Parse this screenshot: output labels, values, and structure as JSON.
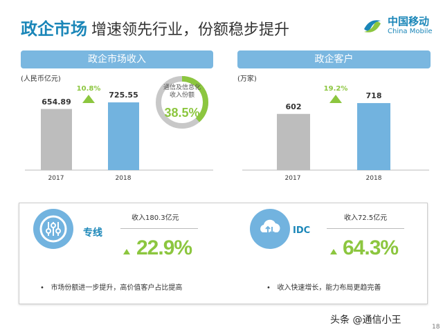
{
  "title": {
    "bold": "政企市场",
    "rest": "增速领先行业，份额稳步提升"
  },
  "logo": {
    "cn": "中国移动",
    "en": "China Mobile"
  },
  "chart_data": [
    {
      "type": "bar",
      "title": "政企市场收入",
      "ylabel": "(人民币亿元)",
      "categories": [
        "2017",
        "2018"
      ],
      "values": [
        654.89,
        725.55
      ],
      "value_labels": [
        "654.89",
        "725.55"
      ],
      "growth": "10.8%",
      "ylim": [
        0,
        800
      ],
      "colors": [
        "#bdbdbd",
        "#72b3df"
      ],
      "donut": {
        "text": "通信及信息化收入份额",
        "value": "38.5%",
        "fraction": 0.385,
        "colors": [
          "#8cc63f",
          "#c8c8c8"
        ]
      }
    },
    {
      "type": "bar",
      "title": "政企客户",
      "ylabel": "(万家)",
      "categories": [
        "2017",
        "2018"
      ],
      "values": [
        602,
        718
      ],
      "value_labels": [
        "602",
        "718"
      ],
      "growth": "19.2%",
      "ylim": [
        0,
        800
      ],
      "colors": [
        "#bdbdbd",
        "#72b3df"
      ]
    }
  ],
  "cards": [
    {
      "icon": "sliders-icon",
      "name": "专线",
      "revenue": "收入180.3亿元",
      "growth": "22.9%",
      "bullet": "市场份额进一步提升，高价值客户占比提高"
    },
    {
      "icon": "cloud-transfer-icon",
      "name": "IDC",
      "revenue": "收入72.5亿元",
      "growth": "64.3%",
      "bullet": "收入快速增长，能力布局更趋完善"
    }
  ],
  "watermark": "头条 @通信小王",
  "page_number": "18"
}
